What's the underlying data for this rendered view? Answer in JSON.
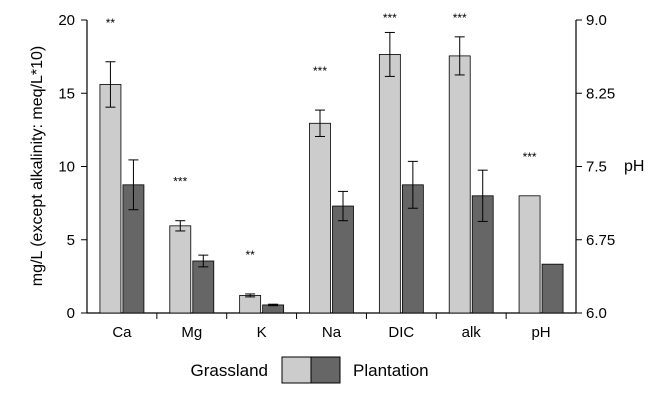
{
  "chart_data": {
    "type": "bar",
    "title": "",
    "categories": [
      "Ca",
      "Mg",
      "K",
      "Na",
      "DIC",
      "alk",
      "pH"
    ],
    "series": [
      {
        "name": "Grassland",
        "color": "#cccccc",
        "values": [
          15.6,
          5.95,
          1.2,
          12.95,
          17.65,
          17.55,
          7.2
        ],
        "errors": [
          1.55,
          0.35,
          0.1,
          0.9,
          1.5,
          1.3,
          null
        ]
      },
      {
        "name": "Plantation",
        "color": "#666666",
        "values": [
          8.75,
          3.55,
          0.55,
          7.3,
          8.75,
          8.0,
          6.5
        ],
        "errors": [
          1.7,
          0.4,
          0.05,
          1.0,
          1.6,
          1.75,
          null
        ]
      }
    ],
    "significance": [
      "**",
      "***",
      "**",
      "***",
      "***",
      "***",
      "***"
    ],
    "y_left": {
      "label": "mg/L (except alkalinity: meq/L*10)",
      "range": [
        0,
        20
      ],
      "ticks": [
        "0",
        "5",
        "10",
        "15",
        "20"
      ]
    },
    "y_right": {
      "label": "pH",
      "range": [
        6.0,
        9.0
      ],
      "ticks": [
        "6.0",
        "6.75",
        "7.5",
        "8.25",
        "9.0"
      ]
    },
    "legend": {
      "position": "bottom",
      "items": [
        "Grassland",
        "Plantation"
      ]
    },
    "grid": false
  }
}
